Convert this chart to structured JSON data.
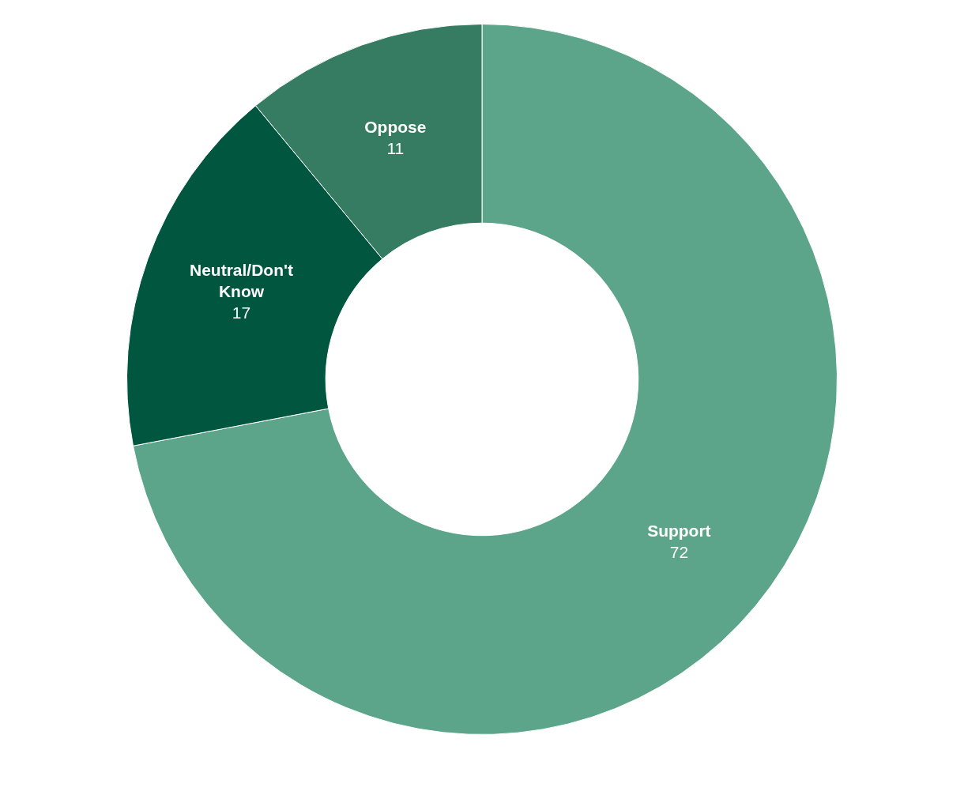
{
  "chart_data": {
    "type": "donut",
    "categories": [
      "Support",
      "Neutral/Don't Know",
      "Oppose"
    ],
    "values": [
      72,
      17,
      11
    ],
    "colors": [
      "#5da58a",
      "#00563f",
      "#357c63"
    ],
    "data_labels": true,
    "legend": false
  }
}
